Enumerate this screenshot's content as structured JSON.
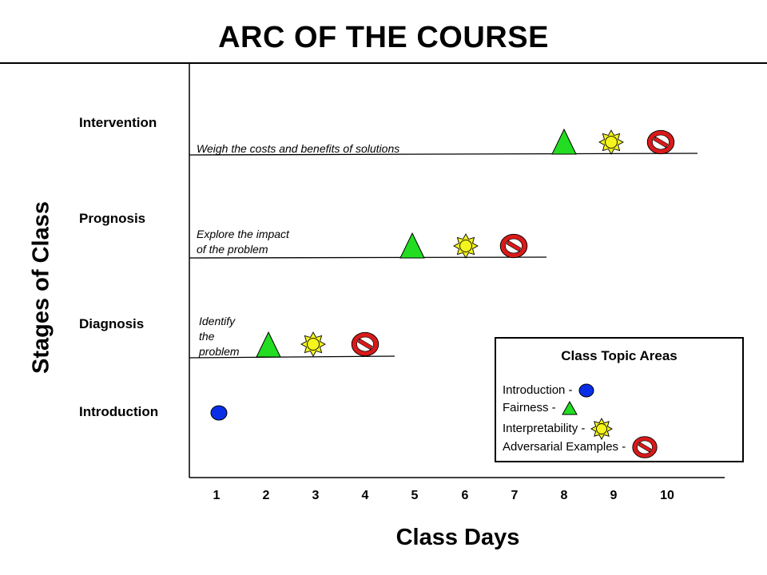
{
  "title": "ARC OF THE COURSE",
  "y_axis_label": "Stages of Class",
  "x_axis_label": "Class Days",
  "days": [
    "1",
    "2",
    "3",
    "4",
    "5",
    "6",
    "7",
    "8",
    "9",
    "10"
  ],
  "stages": [
    {
      "id": "intervention",
      "label": "Intervention",
      "goal_lines": [
        "Weigh the costs and benefits of solutions"
      ]
    },
    {
      "id": "prognosis",
      "label": "Prognosis",
      "goal_lines": [
        "Explore the impact",
        "of the problem"
      ]
    },
    {
      "id": "diagnosis",
      "label": "Diagnosis",
      "goal_lines": [
        "Identify",
        "the",
        "problem"
      ]
    },
    {
      "id": "introduction",
      "label": "Introduction",
      "goal_lines": []
    }
  ],
  "schedule": [
    {
      "stage": "Introduction",
      "topic": "Introduction",
      "day": 1
    },
    {
      "stage": "Diagnosis",
      "topic": "Fairness",
      "day": 2
    },
    {
      "stage": "Diagnosis",
      "topic": "Interpretability",
      "day": 3
    },
    {
      "stage": "Diagnosis",
      "topic": "Adversarial Examples",
      "day": 4
    },
    {
      "stage": "Prognosis",
      "topic": "Fairness",
      "day": 5
    },
    {
      "stage": "Prognosis",
      "topic": "Interpretability",
      "day": 6
    },
    {
      "stage": "Prognosis",
      "topic": "Adversarial Examples",
      "day": 7
    },
    {
      "stage": "Intervention",
      "topic": "Fairness",
      "day": 8
    },
    {
      "stage": "Intervention",
      "topic": "Interpretability",
      "day": 9
    },
    {
      "stage": "Intervention",
      "topic": "Adversarial Examples",
      "day": 10
    }
  ],
  "legend": {
    "title": "Class Topic Areas",
    "items": [
      {
        "label": "Introduction -",
        "icon": "blue-circle-icon"
      },
      {
        "label": "Fairness -",
        "icon": "green-triangle-icon"
      },
      {
        "label": "Interpretability -",
        "icon": "yellow-sun-icon"
      },
      {
        "label": "Adversarial Examples -",
        "icon": "red-no-symbol-icon"
      }
    ]
  },
  "colors": {
    "introduction": "#0a2ee6",
    "fairness": "#22dd22",
    "interpretability": "#f5f51e",
    "adversarial": "#d91a1a"
  }
}
